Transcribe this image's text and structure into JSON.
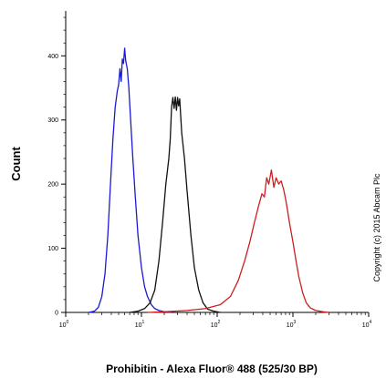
{
  "chart_data": {
    "type": "line",
    "xlabel": "Prohibitin - Alexa Fluor® 488 (525/30 BP)",
    "ylabel": "Count",
    "x_scale": "log",
    "xlim": [
      1,
      10000
    ],
    "ylim": [
      0,
      470
    ],
    "x_ticks": [
      {
        "value": 1,
        "base": "10",
        "exp": "0"
      },
      {
        "value": 10,
        "base": "10",
        "exp": "1"
      },
      {
        "value": 100,
        "base": "10",
        "exp": "2"
      },
      {
        "value": 1000,
        "base": "10",
        "exp": "3"
      },
      {
        "value": 10000,
        "base": "10",
        "exp": "4"
      }
    ],
    "y_ticks": [
      0,
      100,
      200,
      300,
      400
    ],
    "annotation": "Copyright (c) 2015 Abcam Plc",
    "series": [
      {
        "color": "#1a1ad6",
        "points": [
          [
            2.0,
            0
          ],
          [
            2.4,
            2
          ],
          [
            2.7,
            8
          ],
          [
            3.0,
            25
          ],
          [
            3.3,
            60
          ],
          [
            3.6,
            120
          ],
          [
            3.9,
            200
          ],
          [
            4.2,
            270
          ],
          [
            4.5,
            320
          ],
          [
            4.8,
            345
          ],
          [
            5.0,
            355
          ],
          [
            5.2,
            380
          ],
          [
            5.4,
            360
          ],
          [
            5.6,
            395
          ],
          [
            5.8,
            388
          ],
          [
            6.0,
            412
          ],
          [
            6.2,
            392
          ],
          [
            6.5,
            380
          ],
          [
            6.8,
            352
          ],
          [
            7.2,
            300
          ],
          [
            7.7,
            240
          ],
          [
            8.3,
            180
          ],
          [
            9.0,
            120
          ],
          [
            10,
            70
          ],
          [
            11,
            40
          ],
          [
            12,
            25
          ],
          [
            13.5,
            12
          ],
          [
            15,
            6
          ],
          [
            17,
            3
          ],
          [
            20,
            1
          ],
          [
            25,
            0
          ]
        ]
      },
      {
        "color": "#111111",
        "points": [
          [
            7,
            0
          ],
          [
            9,
            2
          ],
          [
            11,
            6
          ],
          [
            13,
            15
          ],
          [
            15,
            35
          ],
          [
            17,
            80
          ],
          [
            19,
            140
          ],
          [
            21,
            200
          ],
          [
            23,
            240
          ],
          [
            24,
            270
          ],
          [
            25,
            320
          ],
          [
            26,
            335
          ],
          [
            27,
            318
          ],
          [
            28,
            336
          ],
          [
            29,
            315
          ],
          [
            30,
            335
          ],
          [
            31,
            322
          ],
          [
            32,
            333
          ],
          [
            34,
            280
          ],
          [
            37,
            240
          ],
          [
            40,
            190
          ],
          [
            45,
            120
          ],
          [
            50,
            70
          ],
          [
            57,
            35
          ],
          [
            65,
            15
          ],
          [
            75,
            5
          ],
          [
            90,
            2
          ],
          [
            110,
            0
          ]
        ]
      },
      {
        "color": "#cc1f1f",
        "points": [
          [
            12,
            0
          ],
          [
            20,
            1
          ],
          [
            40,
            3
          ],
          [
            70,
            6
          ],
          [
            110,
            12
          ],
          [
            150,
            25
          ],
          [
            190,
            50
          ],
          [
            230,
            80
          ],
          [
            270,
            110
          ],
          [
            310,
            140
          ],
          [
            350,
            165
          ],
          [
            390,
            185
          ],
          [
            420,
            180
          ],
          [
            450,
            210
          ],
          [
            480,
            200
          ],
          [
            520,
            222
          ],
          [
            560,
            195
          ],
          [
            600,
            210
          ],
          [
            650,
            200
          ],
          [
            700,
            205
          ],
          [
            760,
            190
          ],
          [
            820,
            170
          ],
          [
            900,
            140
          ],
          [
            1000,
            110
          ],
          [
            1100,
            80
          ],
          [
            1200,
            55
          ],
          [
            1350,
            30
          ],
          [
            1500,
            15
          ],
          [
            1700,
            7
          ],
          [
            2000,
            3
          ],
          [
            2500,
            1
          ],
          [
            3000,
            0
          ]
        ]
      }
    ]
  }
}
